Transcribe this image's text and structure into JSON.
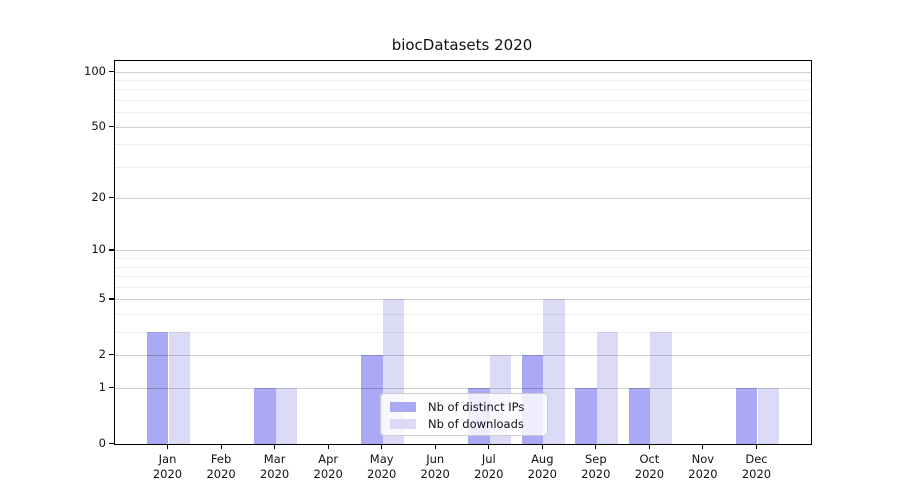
{
  "chart_data": {
    "type": "bar",
    "title": "biocDatasets 2020",
    "categories": [
      "Jan",
      "Feb",
      "Mar",
      "Apr",
      "May",
      "Jun",
      "Jul",
      "Aug",
      "Sep",
      "Oct",
      "Nov",
      "Dec"
    ],
    "category_year": "2020",
    "series": [
      {
        "name": "Nb of distinct IPs",
        "color": "#a9a9f4",
        "values": [
          3,
          0,
          1,
          0,
          2,
          0,
          1,
          2,
          1,
          1,
          0,
          1
        ]
      },
      {
        "name": "Nb of downloads",
        "color": "#dbdbf8",
        "values": [
          3,
          0,
          1,
          0,
          5,
          0,
          2,
          5,
          3,
          3,
          0,
          1
        ]
      }
    ],
    "xlabel": "",
    "ylabel": "",
    "yscale": "log1p",
    "ylim": [
      0,
      114
    ],
    "y_major_ticks": [
      0,
      1,
      2,
      5,
      10,
      20,
      50,
      100
    ],
    "y_minor_ticks": [
      3,
      4,
      6,
      7,
      8,
      9,
      30,
      40,
      60,
      70,
      80,
      90
    ],
    "grid": "horizontal, drawn over bars",
    "legend_position": "lower center"
  },
  "colors": {
    "background": "#ffffff",
    "axis": "#000000",
    "text": "#111111",
    "grid_major": "#d1d1d1",
    "grid_minor": "#ededed"
  }
}
